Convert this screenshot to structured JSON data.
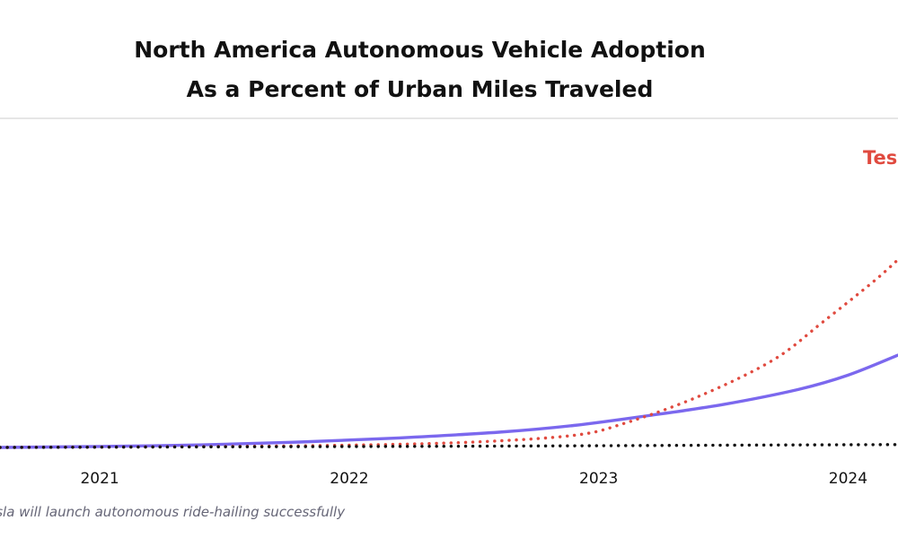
{
  "chart_data": {
    "type": "line",
    "title": "North America Autonomous Vehicle Adoption",
    "subtitle": "As a Percent of Urban Miles Traveled",
    "x_ticks": [
      "2021",
      "2022",
      "2023",
      "2024"
    ],
    "x_ticks_value": [
      2021,
      2022,
      2023,
      2024
    ],
    "xlim": [
      2020.6,
      2024.2
    ],
    "ylim": [
      0,
      1
    ],
    "series": [
      {
        "name": "",
        "color": "#7b68ee",
        "style": "solid",
        "points": [
          [
            2020.6,
            0
          ],
          [
            2021.0,
            0.003
          ],
          [
            2021.4,
            0.008
          ],
          [
            2021.8,
            0.017
          ],
          [
            2022.2,
            0.03
          ],
          [
            2022.6,
            0.048
          ],
          [
            2022.9,
            0.069
          ],
          [
            2023.2,
            0.1
          ],
          [
            2023.5,
            0.135
          ],
          [
            2023.8,
            0.182
          ],
          [
            2024.0,
            0.227
          ],
          [
            2024.2,
            0.29
          ]
        ]
      },
      {
        "name": "Tesl",
        "color": "#e04a3f",
        "style": "dotted",
        "points": [
          [
            2020.6,
            0
          ],
          [
            2021.0,
            0.001
          ],
          [
            2021.5,
            0.003
          ],
          [
            2022.0,
            0.007
          ],
          [
            2022.5,
            0.017
          ],
          [
            2022.9,
            0.038
          ],
          [
            2023.1,
            0.075
          ],
          [
            2023.4,
            0.16
          ],
          [
            2023.7,
            0.275
          ],
          [
            2023.9,
            0.395
          ],
          [
            2024.1,
            0.52
          ],
          [
            2024.2,
            0.59
          ]
        ]
      },
      {
        "name": "",
        "color": "#111111",
        "style": "dotted",
        "points": [
          [
            2020.6,
            0
          ],
          [
            2021.5,
            0.002
          ],
          [
            2022.5,
            0.004
          ],
          [
            2023.5,
            0.007
          ],
          [
            2024.2,
            0.009
          ]
        ]
      }
    ],
    "footnote": "esla will launch autonomous ride-hailing successfully"
  }
}
